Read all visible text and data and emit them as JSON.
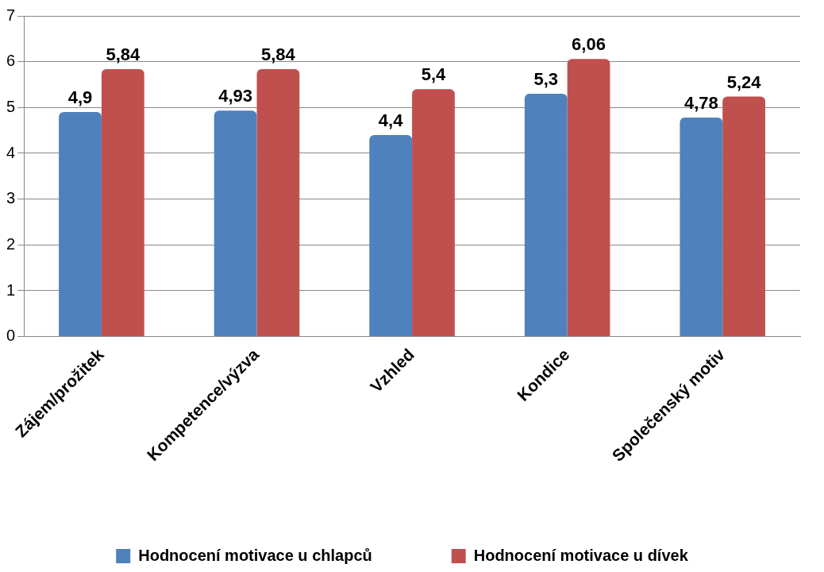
{
  "chart_data": {
    "type": "bar",
    "categories": [
      "Zájem/prožitek",
      "Kompetence/výzva",
      "Vzhled",
      "Kondice",
      "Společenský motiv"
    ],
    "series": [
      {
        "name": "Hodnocení motivace u chlapců",
        "color": "#4f81bd",
        "values": [
          4.9,
          4.93,
          4.4,
          5.3,
          4.78
        ],
        "value_labels": [
          "4,9",
          "4,93",
          "4,4",
          "5,3",
          "4,78"
        ]
      },
      {
        "name": "Hodnocení motivace u dívek",
        "color": "#c0504d",
        "values": [
          5.84,
          5.84,
          5.4,
          6.06,
          5.24
        ],
        "value_labels": [
          "5,84",
          "5,84",
          "5,4",
          "6,06",
          "5,24"
        ]
      }
    ],
    "ylim": [
      0,
      7
    ],
    "yticks": [
      0,
      1,
      2,
      3,
      4,
      5,
      6,
      7
    ],
    "grid": "y",
    "legend": "bottom"
  }
}
